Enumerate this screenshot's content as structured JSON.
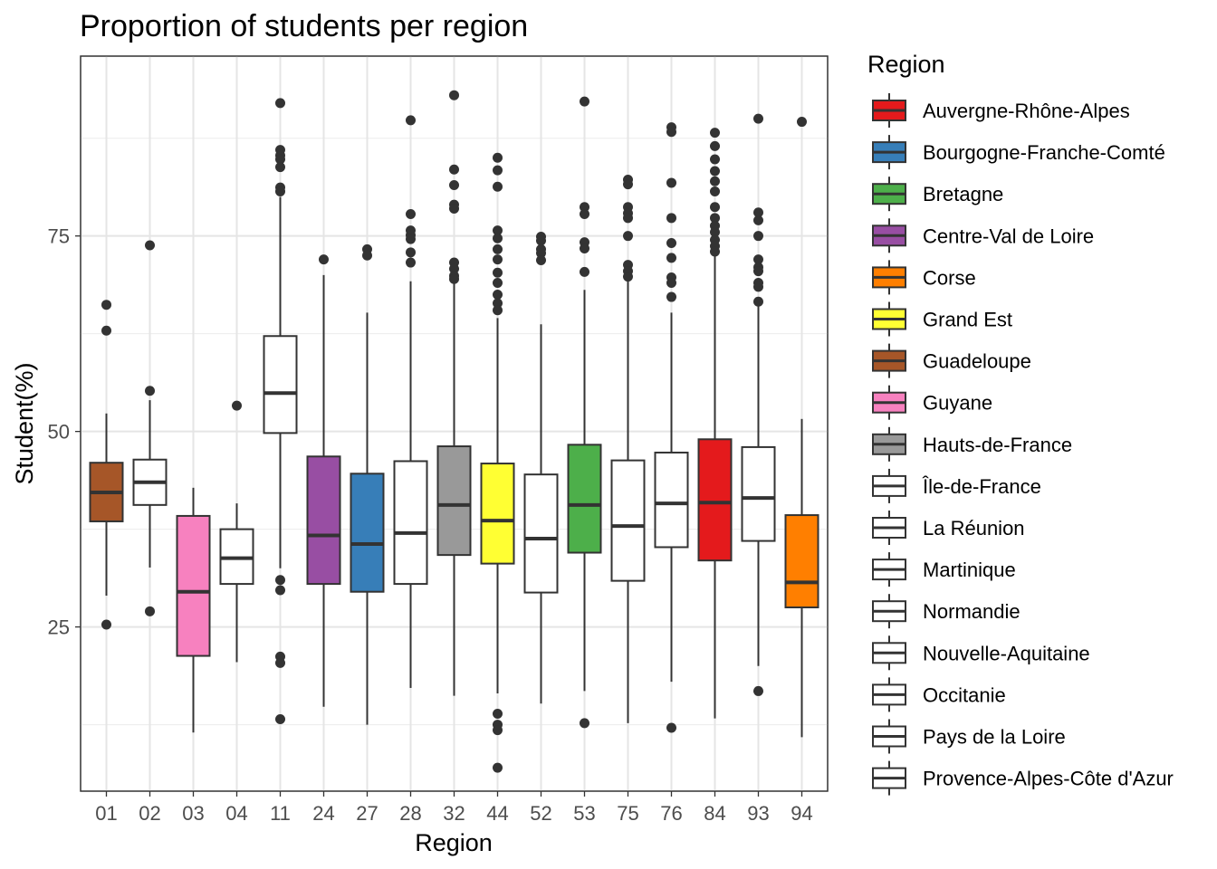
{
  "chart_data": {
    "type": "boxplot",
    "title": "Proportion of students per region",
    "xlabel": "Region",
    "ylabel": "Student(%)",
    "ylim": [
      4,
      98
    ],
    "yticks": [
      25,
      50,
      75
    ],
    "grid": true,
    "legend": {
      "title": "Region",
      "position": "right",
      "entries": [
        {
          "label": "Auvergne-Rhône-Alpes",
          "color": "#e41a1c"
        },
        {
          "label": "Bourgogne-Franche-Comté",
          "color": "#377eb8"
        },
        {
          "label": "Bretagne",
          "color": "#4daf4a"
        },
        {
          "label": "Centre-Val de Loire",
          "color": "#984ea3"
        },
        {
          "label": "Corse",
          "color": "#ff7f00"
        },
        {
          "label": "Grand Est",
          "color": "#ffff33"
        },
        {
          "label": "Guadeloupe",
          "color": "#a65628"
        },
        {
          "label": "Guyane",
          "color": "#f781bf"
        },
        {
          "label": "Hauts-de-France",
          "color": "#999999"
        },
        {
          "label": "Île-de-France",
          "color": "#ffffff"
        },
        {
          "label": "La Réunion",
          "color": "#ffffff"
        },
        {
          "label": "Martinique",
          "color": "#ffffff"
        },
        {
          "label": "Normandie",
          "color": "#ffffff"
        },
        {
          "label": "Nouvelle-Aquitaine",
          "color": "#ffffff"
        },
        {
          "label": "Occitanie",
          "color": "#ffffff"
        },
        {
          "label": "Pays de la Loire",
          "color": "#ffffff"
        },
        {
          "label": "Provence-Alpes-Côte d'Azur",
          "color": "#ffffff"
        }
      ]
    },
    "categories": [
      "01",
      "02",
      "03",
      "04",
      "11",
      "24",
      "27",
      "28",
      "32",
      "44",
      "52",
      "53",
      "75",
      "76",
      "84",
      "93",
      "94"
    ],
    "boxes": [
      {
        "cat": "01",
        "fill": "#a65628",
        "q1": 38.5,
        "median": 42.2,
        "q3": 46.0,
        "whisker_low": 29.0,
        "whisker_high": 52.3,
        "outliers": [
          66.2,
          62.9,
          25.3
        ]
      },
      {
        "cat": "02",
        "fill": "#ffffff",
        "q1": 40.6,
        "median": 43.5,
        "q3": 46.4,
        "whisker_low": 32.6,
        "whisker_high": 54.0,
        "outliers": [
          73.8,
          55.2,
          27.0
        ]
      },
      {
        "cat": "03",
        "fill": "#f781bf",
        "q1": 21.3,
        "median": 29.5,
        "q3": 39.2,
        "whisker_low": 11.5,
        "whisker_high": 42.8,
        "outliers": []
      },
      {
        "cat": "04",
        "fill": "#ffffff",
        "q1": 30.5,
        "median": 33.8,
        "q3": 37.5,
        "whisker_low": 20.5,
        "whisker_high": 40.8,
        "outliers": [
          53.3
        ]
      },
      {
        "cat": "11",
        "fill": "#ffffff",
        "q1": 49.8,
        "median": 54.9,
        "q3": 62.2,
        "whisker_low": 32.5,
        "whisker_high": 80.0,
        "outliers": [
          92.0,
          86.0,
          85.3,
          84.8,
          83.8,
          81.2,
          80.7,
          31.0,
          29.7,
          21.2,
          20.4,
          13.2
        ]
      },
      {
        "cat": "24",
        "fill": "#984ea3",
        "q1": 30.5,
        "median": 36.7,
        "q3": 46.8,
        "whisker_low": 14.8,
        "whisker_high": 70.0,
        "outliers": [
          72.0
        ]
      },
      {
        "cat": "27",
        "fill": "#377eb8",
        "q1": 29.5,
        "median": 35.6,
        "q3": 44.6,
        "whisker_low": 12.5,
        "whisker_high": 65.2,
        "outliers": [
          73.3,
          72.5
        ]
      },
      {
        "cat": "28",
        "fill": "#ffffff",
        "q1": 30.5,
        "median": 37.0,
        "q3": 46.2,
        "whisker_low": 17.2,
        "whisker_high": 69.2,
        "outliers": [
          89.8,
          77.8,
          75.7,
          75.1,
          74.6,
          72.9,
          71.6
        ]
      },
      {
        "cat": "32",
        "fill": "#999999",
        "q1": 34.2,
        "median": 40.6,
        "q3": 48.1,
        "whisker_low": 16.2,
        "whisker_high": 69.0,
        "outliers": [
          93.0,
          83.5,
          81.5,
          79.0,
          78.5,
          71.6,
          70.8,
          69.9,
          69.5
        ]
      },
      {
        "cat": "44",
        "fill": "#ffff33",
        "q1": 33.1,
        "median": 38.6,
        "q3": 45.9,
        "whisker_low": 16.5,
        "whisker_high": 64.5,
        "outliers": [
          85.0,
          83.4,
          81.3,
          75.7,
          74.7,
          73.3,
          72.0,
          70.3,
          69.0,
          67.5,
          66.4,
          65.5,
          13.9,
          12.5,
          11.8,
          7.0
        ]
      },
      {
        "cat": "52",
        "fill": "#ffffff",
        "q1": 29.4,
        "median": 36.3,
        "q3": 44.5,
        "whisker_low": 15.2,
        "whisker_high": 63.7,
        "outliers": [
          74.9,
          74.4,
          73.3,
          72.8,
          71.9
        ]
      },
      {
        "cat": "53",
        "fill": "#4daf4a",
        "q1": 34.5,
        "median": 40.6,
        "q3": 48.3,
        "whisker_low": 16.8,
        "whisker_high": 68.1,
        "outliers": [
          92.2,
          78.7,
          77.8,
          74.2,
          73.4,
          70.4,
          12.7
        ]
      },
      {
        "cat": "75",
        "fill": "#ffffff",
        "q1": 30.9,
        "median": 37.9,
        "q3": 46.3,
        "whisker_low": 12.7,
        "whisker_high": 69.5,
        "outliers": [
          82.2,
          81.6,
          78.7,
          77.9,
          77.3,
          75.0,
          71.3,
          70.5,
          69.8
        ]
      },
      {
        "cat": "76",
        "fill": "#ffffff",
        "q1": 35.2,
        "median": 40.8,
        "q3": 47.3,
        "whisker_low": 18.0,
        "whisker_high": 65.2,
        "outliers": [
          88.9,
          88.3,
          81.8,
          77.3,
          74.1,
          72.2,
          69.7,
          69.0,
          67.2,
          12.1
        ]
      },
      {
        "cat": "84",
        "fill": "#e41a1c",
        "q1": 33.5,
        "median": 40.9,
        "q3": 49.0,
        "whisker_low": 13.3,
        "whisker_high": 72.5,
        "outliers": [
          88.2,
          86.5,
          84.8,
          83.3,
          82.0,
          80.7,
          78.7,
          77.3,
          76.3,
          75.5,
          74.5,
          73.7,
          73.0
        ]
      },
      {
        "cat": "93",
        "fill": "#ffffff",
        "q1": 36.0,
        "median": 41.5,
        "q3": 48.0,
        "whisker_low": 20.0,
        "whisker_high": 66.0,
        "outliers": [
          90.0,
          78.0,
          77.0,
          75.0,
          72.0,
          71.0,
          70.5,
          69.0,
          68.5,
          66.6,
          16.8
        ]
      },
      {
        "cat": "94",
        "fill": "#ff7f00",
        "q1": 27.5,
        "median": 30.7,
        "q3": 39.3,
        "whisker_low": 10.9,
        "whisker_high": 51.6,
        "outliers": [
          89.6
        ]
      }
    ]
  }
}
